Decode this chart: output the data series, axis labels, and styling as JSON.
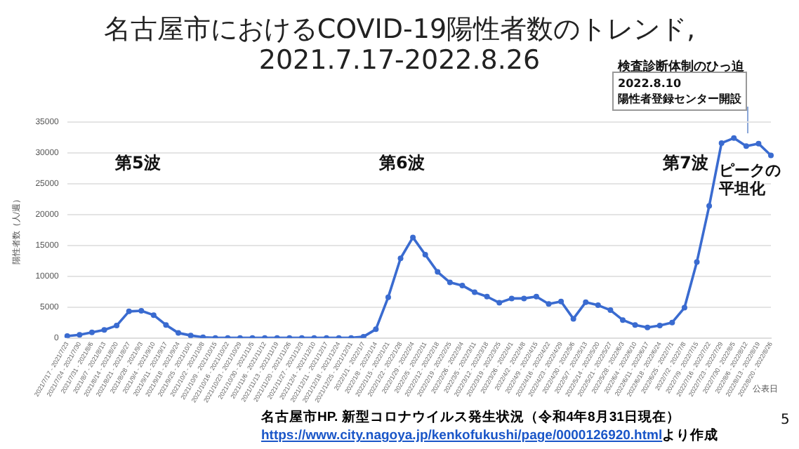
{
  "chart_data": {
    "type": "line",
    "title": "名古屋市におけるCOVID-19陽性者数のトレンド,\n2021.7.17-2022.8.26",
    "xlabel": "公表日",
    "ylabel": "陽性者数（人/週）",
    "categories": [
      "2021/7/17 - 2021/7/23",
      "2021/7/24 - 2021/7/30",
      "2021/7/31 - 2021/8/6",
      "2021/8/7 - 2021/8/13",
      "2021/8/14 - 2021/8/20",
      "2021/8/21 - 2021/8/27",
      "2021/8/28 - 2021/9/3",
      "2021/9/4 - 2021/9/10",
      "2021/9/11 - 2021/9/17",
      "2021/9/18 - 2021/9/24",
      "2021/9/25 - 2021/10/1",
      "2021/10/2 - 2021/10/8",
      "2021/10/9 - 2021/10/15",
      "2021/10/16 - 2021/10/22",
      "2021/10/23 - 2021/10/29",
      "2021/10/30 - 2021/11/5",
      "2021/11/6 - 2021/11/12",
      "2021/11/13 - 2021/11/19",
      "2021/11/20 - 2021/11/26",
      "2021/11/27 - 2021/12/3",
      "2021/12/4 - 2021/12/10",
      "2021/12/11 - 2021/12/17",
      "2021/12/18 - 2021/12/24",
      "2021/12/25 - 2021/12/31",
      "2022/1/1 - 2022/1/7",
      "2022/1/8 - 2022/1/14",
      "2022/1/15 - 2022/1/21",
      "2022/1/22 - 2022/1/28",
      "2022/1/29 - 2022/2/4",
      "2022/2/5 - 2022/2/11",
      "2022/2/12 - 2022/2/18",
      "2022/2/19 - 2022/2/25",
      "2022/2/26 - 2022/3/4",
      "2022/3/5 - 2022/3/11",
      "2022/3/12 - 2022/3/18",
      "2022/3/19 - 2022/3/25",
      "2022/3/26 - 2022/4/1",
      "2022/4/2 - 2022/4/8",
      "2022/4/9 - 2022/4/15",
      "2022/4/16 - 2022/4/22",
      "2022/4/23 - 2022/4/29",
      "2022/4/30 - 2022/5/6",
      "2022/5/7 - 2022/5/13",
      "2022/5/14 - 2022/5/20",
      "2022/5/21 - 2022/5/27",
      "2022/5/28 - 2022/6/3",
      "2022/6/4 - 2022/6/10",
      "2022/6/11 - 2022/6/17",
      "2022/6/18 - 2022/6/24",
      "2022/6/25 - 2022/7/1",
      "2022/7/2 - 2022/7/8",
      "2022/7/9 - 2022/7/15",
      "2022/7/16 - 2022/7/22",
      "2022/7/23 - 2022/7/29",
      "2022/7/30 - 2022/8/5",
      "2022/8/6 - 2022/8/12",
      "2022/8/13 - 2022/8/19",
      "2022/8/20 - 2022/8/26"
    ],
    "series": [
      {
        "color": "#3a6bd0",
        "values": [
          300,
          500,
          900,
          1300,
          2000,
          4300,
          4400,
          3700,
          2100,
          800,
          400,
          100,
          0,
          0,
          0,
          0,
          0,
          0,
          0,
          0,
          0,
          0,
          0,
          0,
          200,
          1400,
          6600,
          12900,
          16300,
          13500,
          10700,
          9000,
          8500,
          7400,
          6700,
          5700,
          6400,
          6400,
          6700,
          5500,
          5900,
          3100,
          5800,
          5300,
          4500,
          2900,
          2100,
          1700,
          2000,
          2500,
          4900,
          12300,
          21400,
          31600,
          32400,
          31100,
          31500,
          29600
        ]
      }
    ],
    "ylim": [
      0,
      35000
    ],
    "yticks": [
      0,
      5000,
      10000,
      15000,
      20000,
      25000,
      30000,
      35000
    ],
    "grid": "y",
    "marker": "circle",
    "line_style": "solid",
    "legend": false,
    "annotations": [
      "第5波",
      "第6波",
      "第7波",
      "ピークの平坦化",
      "検査診断体制のひっ迫",
      "2022.8.10\n陽性者登録センター開設",
      "名古屋市HP. 新型コロナウイルス発生状況（令和4年8月31日現在）",
      "https://www.city.nagoya.jp/kenkofukushi/page/0000126920.html",
      "より作成",
      "5"
    ]
  }
}
